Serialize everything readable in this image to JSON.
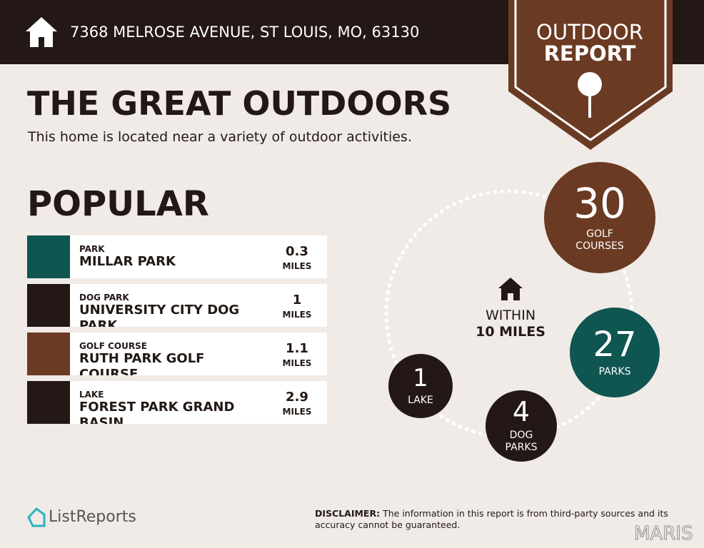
{
  "header": {
    "address": "7368 MELROSE AVENUE, ST LOUIS, MO, 63130"
  },
  "badge": {
    "line1": "OUTDOOR",
    "line2": "REPORT"
  },
  "title": "THE GREAT OUTDOORS",
  "subtitle": "This home is located near a variety of outdoor activities.",
  "popular": {
    "heading": "POPULAR",
    "items": [
      {
        "category": "PARK",
        "name": "MILLAR PARK",
        "distance": 0.3,
        "unit": "MILES"
      },
      {
        "category": "DOG PARK",
        "name": "UNIVERSITY CITY DOG PARK",
        "distance": 1,
        "unit": "MILES"
      },
      {
        "category": "GOLF COURSE",
        "name": "RUTH PARK GOLF COURSE",
        "distance": 1.1,
        "unit": "MILES"
      },
      {
        "category": "LAKE",
        "name": "FOREST PARK GRAND BASIN",
        "distance": 2.9,
        "unit": "MILES"
      }
    ]
  },
  "summary": {
    "within": "WITHIN",
    "radius": "10 MILES",
    "counts": [
      {
        "count": 30,
        "label": "GOLF COURSES"
      },
      {
        "count": 27,
        "label": "PARKS"
      },
      {
        "count": 4,
        "label": "DOG PARKS"
      },
      {
        "count": 1,
        "label": "LAKE"
      }
    ]
  },
  "footer": {
    "brand": "ListReports",
    "disclaimer_label": "DISCLAIMER:",
    "disclaimer": "The information in this report is from third-party sources and its accuracy cannot be guaranteed.",
    "watermark": "MARIS"
  }
}
